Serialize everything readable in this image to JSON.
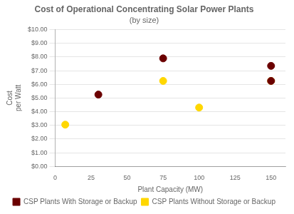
{
  "chart_data": {
    "type": "scatter",
    "title": "Cost of Operational Concentrating Solar Power Plants",
    "subtitle": "(by size)",
    "x_label": "Plant Capacity (MW)",
    "y_label": "Cost\nper Watt",
    "series": [
      {
        "name": "CSP Plants With Storage or Backup",
        "color": "#6B0000",
        "x": [
          30,
          75,
          150,
          150
        ],
        "values": [
          5.25,
          7.9,
          7.35,
          6.25
        ]
      },
      {
        "name": "CSP Plants Without Storage or Backup",
        "color": "#FFD700",
        "x": [
          7,
          75,
          100,
          150
        ],
        "values": [
          3.05,
          6.25,
          4.3,
          6.25
        ]
      }
    ],
    "xlim": [
      0,
      160
    ],
    "ylim": [
      0,
      10
    ],
    "xticks": [
      0,
      25,
      50,
      75,
      100,
      125,
      150
    ],
    "yticks": [
      {
        "value": 0,
        "label": "$0.00"
      },
      {
        "value": 1,
        "label": "$1.00"
      },
      {
        "value": 2,
        "label": "$2.00"
      },
      {
        "value": 3,
        "label": "$3.00"
      },
      {
        "value": 4,
        "label": "$4.00"
      },
      {
        "value": 5,
        "label": "$5.00"
      },
      {
        "value": 6,
        "label": "$6.00"
      },
      {
        "value": 7,
        "label": "$7.00"
      },
      {
        "value": 8,
        "label": "$8.00"
      },
      {
        "value": 9,
        "label": "$9.00"
      },
      {
        "value": 10,
        "label": "$10.00"
      }
    ],
    "grid": "y",
    "legend": "bottom"
  }
}
